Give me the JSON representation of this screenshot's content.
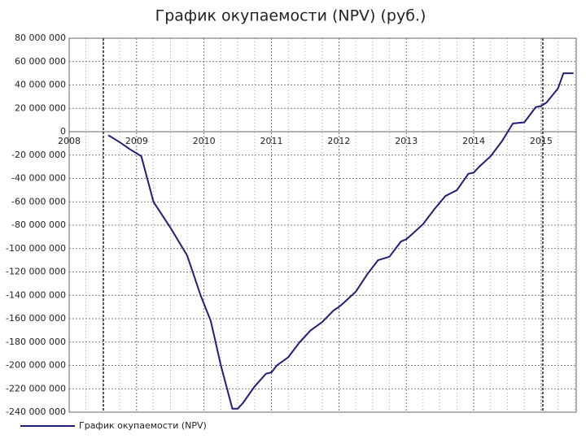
{
  "chart_data": {
    "type": "line",
    "title": "График окупаемости (NPV) (руб.)",
    "x": [
      2008.58,
      2008.75,
      2008.9,
      2009.07,
      2009.25,
      2009.5,
      2009.75,
      2009.95,
      2010.1,
      2010.25,
      2010.42,
      2010.5,
      2010.58,
      2010.75,
      2010.92,
      2011.0,
      2011.08,
      2011.25,
      2011.42,
      2011.58,
      2011.75,
      2011.92,
      2012.0,
      2012.08,
      2012.25,
      2012.42,
      2012.58,
      2012.75,
      2012.92,
      2013.0,
      2013.08,
      2013.25,
      2013.42,
      2013.58,
      2013.75,
      2013.92,
      2014.0,
      2014.08,
      2014.25,
      2014.42,
      2014.58,
      2014.75,
      2014.92,
      2015.0,
      2015.08,
      2015.25,
      2015.33,
      2015.48
    ],
    "series": [
      {
        "name": "График окупаемости (NPV)",
        "color": "#1f1f7a",
        "values": [
          -3000000,
          -9000000,
          -15000000,
          -21000000,
          -60000000,
          -82000000,
          -106000000,
          -140000000,
          -162000000,
          -200000000,
          -237000000,
          -237000000,
          -232000000,
          -218000000,
          -207000000,
          -206000000,
          -200000000,
          -193000000,
          -180000000,
          -170000000,
          -163000000,
          -153000000,
          -150000000,
          -146000000,
          -137000000,
          -122000000,
          -110000000,
          -107000000,
          -94000000,
          -92000000,
          -88000000,
          -79000000,
          -66000000,
          -55000000,
          -50000000,
          -36000000,
          -35000000,
          -30000000,
          -21000000,
          -8000000,
          7000000,
          8000000,
          21000000,
          22000000,
          25000000,
          37000000,
          50000000,
          50000000
        ]
      }
    ],
    "xlim": [
      2008,
      2015.52
    ],
    "xticks": [
      2008,
      2009,
      2010,
      2011,
      2012,
      2013,
      2014,
      2015
    ],
    "ylim": [
      -240000000,
      80000000
    ],
    "yticks": [
      {
        "value": -240000000,
        "label": "-240 000 000"
      },
      {
        "value": -220000000,
        "label": "-220 000 000"
      },
      {
        "value": -200000000,
        "label": "-200 000 000"
      },
      {
        "value": -180000000,
        "label": "-180 000 000"
      },
      {
        "value": -160000000,
        "label": "-160 000 000"
      },
      {
        "value": -140000000,
        "label": "-140 000 000"
      },
      {
        "value": -120000000,
        "label": "-120 000 000"
      },
      {
        "value": -100000000,
        "label": "-100 000 000"
      },
      {
        "value": -80000000,
        "label": "-80 000 000"
      },
      {
        "value": -60000000,
        "label": "-60 000 000"
      },
      {
        "value": -40000000,
        "label": "-40 000 000"
      },
      {
        "value": -20000000,
        "label": "-20 000 000"
      },
      0,
      {
        "value": 20000000,
        "label": "20 000 000"
      },
      {
        "value": 40000000,
        "label": "40 000 000"
      },
      {
        "value": 60000000,
        "label": "60 000 000"
      },
      {
        "value": 80000000,
        "label": "80 000 000"
      }
    ],
    "grid": true,
    "legend": "bottom-left"
  }
}
